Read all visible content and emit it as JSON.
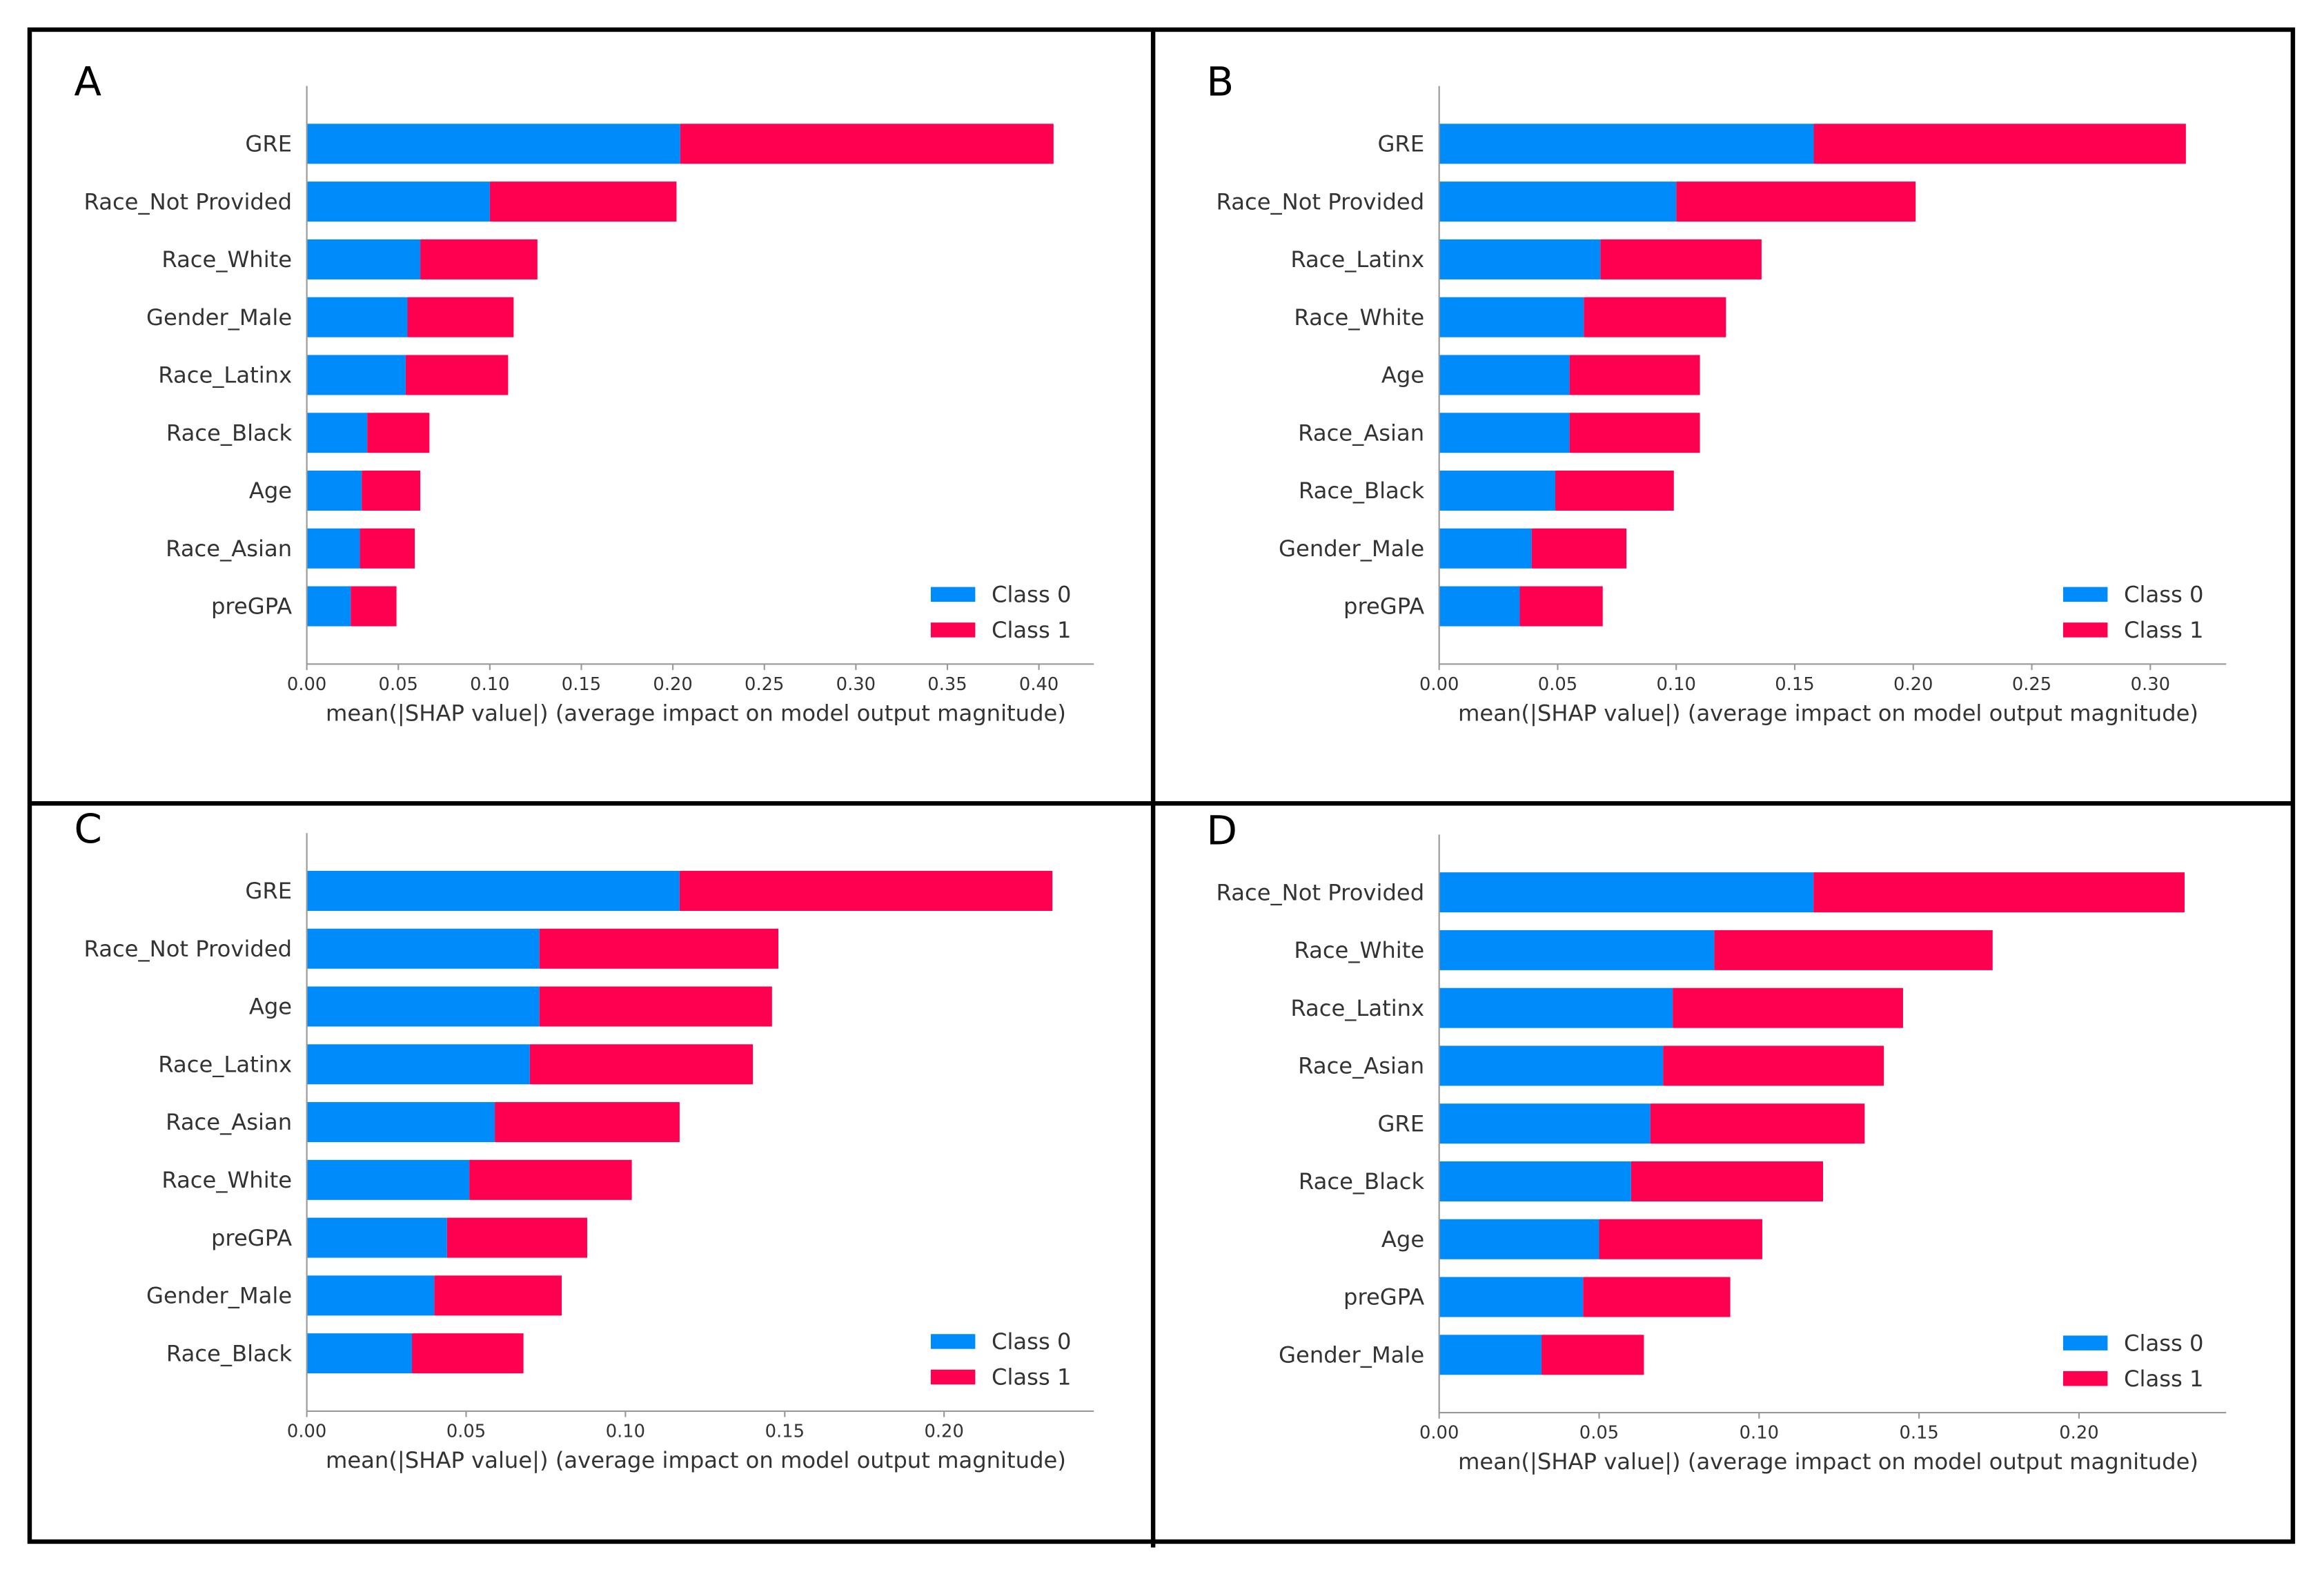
{
  "chart_data": [
    {
      "type": "bar",
      "orientation": "horizontal",
      "stacked": true,
      "label": "A",
      "xlabel": "mean(|SHAP value|) (average impact on model output magnitude)",
      "categories": [
        "GRE",
        "Race_Not Provided",
        "Race_White",
        "Gender_Male",
        "Race_Latinx",
        "Race_Black",
        "Age",
        "Race_Asian",
        "preGPA"
      ],
      "series": [
        {
          "name": "Class 0",
          "color": "#008bfb",
          "values": [
            0.204,
            0.1,
            0.062,
            0.055,
            0.054,
            0.033,
            0.03,
            0.029,
            0.024
          ]
        },
        {
          "name": "Class 1",
          "color": "#ff0051",
          "values": [
            0.204,
            0.102,
            0.064,
            0.058,
            0.056,
            0.034,
            0.032,
            0.03,
            0.025
          ]
        }
      ],
      "xlim": [
        0,
        0.43
      ],
      "xticks": [
        {
          "value": 0,
          "label": "0.00"
        },
        {
          "value": 0.05,
          "label": "0.05"
        },
        {
          "value": 0.1,
          "label": "0.10"
        },
        {
          "value": 0.15,
          "label": "0.15"
        },
        {
          "value": 0.2,
          "label": "0.20"
        },
        {
          "value": 0.25,
          "label": "0.25"
        },
        {
          "value": 0.3,
          "label": "0.30"
        },
        {
          "value": 0.35,
          "label": "0.35"
        },
        {
          "value": 0.4,
          "label": "0.40"
        }
      ],
      "legend": "lower right"
    },
    {
      "type": "bar",
      "orientation": "horizontal",
      "stacked": true,
      "label": "B",
      "xlabel": "mean(|SHAP value|) (average impact on model output magnitude)",
      "categories": [
        "GRE",
        "Race_Not Provided",
        "Race_Latinx",
        "Race_White",
        "Age",
        "Race_Asian",
        "Race_Black",
        "Gender_Male",
        "preGPA"
      ],
      "series": [
        {
          "name": "Class 0",
          "color": "#008bfb",
          "values": [
            0.158,
            0.1,
            0.068,
            0.061,
            0.055,
            0.055,
            0.049,
            0.039,
            0.034
          ]
        },
        {
          "name": "Class 1",
          "color": "#ff0051",
          "values": [
            0.157,
            0.101,
            0.068,
            0.06,
            0.055,
            0.055,
            0.05,
            0.04,
            0.035
          ]
        }
      ],
      "xlim": [
        0,
        0.332
      ],
      "xticks": [
        {
          "value": 0,
          "label": "0.00"
        },
        {
          "value": 0.05,
          "label": "0.05"
        },
        {
          "value": 0.1,
          "label": "0.10"
        },
        {
          "value": 0.15,
          "label": "0.15"
        },
        {
          "value": 0.2,
          "label": "0.20"
        },
        {
          "value": 0.25,
          "label": "0.25"
        },
        {
          "value": 0.3,
          "label": "0.30"
        }
      ],
      "legend": "lower right"
    },
    {
      "type": "bar",
      "orientation": "horizontal",
      "stacked": true,
      "label": "C",
      "xlabel": "mean(|SHAP value|) (average impact on model output magnitude)",
      "categories": [
        "GRE",
        "Race_Not Provided",
        "Age",
        "Race_Latinx",
        "Race_Asian",
        "Race_White",
        "preGPA",
        "Gender_Male",
        "Race_Black"
      ],
      "series": [
        {
          "name": "Class 0",
          "color": "#008bfb",
          "values": [
            0.117,
            0.073,
            0.073,
            0.07,
            0.059,
            0.051,
            0.044,
            0.04,
            0.033
          ]
        },
        {
          "name": "Class 1",
          "color": "#ff0051",
          "values": [
            0.117,
            0.075,
            0.073,
            0.07,
            0.058,
            0.051,
            0.044,
            0.04,
            0.035
          ]
        }
      ],
      "xlim": [
        0,
        0.247
      ],
      "xticks": [
        {
          "value": 0,
          "label": "0.00"
        },
        {
          "value": 0.05,
          "label": "0.05"
        },
        {
          "value": 0.1,
          "label": "0.10"
        },
        {
          "value": 0.15,
          "label": "0.15"
        },
        {
          "value": 0.2,
          "label": "0.20"
        }
      ],
      "legend": "lower right"
    },
    {
      "type": "bar",
      "orientation": "horizontal",
      "stacked": true,
      "label": "D",
      "xlabel": "mean(|SHAP value|) (average impact on model output magnitude)",
      "categories": [
        "Race_Not Provided",
        "Race_White",
        "Race_Latinx",
        "Race_Asian",
        "GRE",
        "Race_Black",
        "Age",
        "preGPA",
        "Gender_Male"
      ],
      "series": [
        {
          "name": "Class 0",
          "color": "#008bfb",
          "values": [
            0.117,
            0.086,
            0.073,
            0.07,
            0.066,
            0.06,
            0.05,
            0.045,
            0.032
          ]
        },
        {
          "name": "Class 1",
          "color": "#ff0051",
          "values": [
            0.116,
            0.087,
            0.072,
            0.069,
            0.067,
            0.06,
            0.051,
            0.046,
            0.032
          ]
        }
      ],
      "xlim": [
        0,
        0.246
      ],
      "xticks": [
        {
          "value": 0,
          "label": "0.00"
        },
        {
          "value": 0.05,
          "label": "0.05"
        },
        {
          "value": 0.1,
          "label": "0.10"
        },
        {
          "value": 0.15,
          "label": "0.15"
        },
        {
          "value": 0.2,
          "label": "0.20"
        }
      ],
      "legend": "lower right"
    }
  ]
}
